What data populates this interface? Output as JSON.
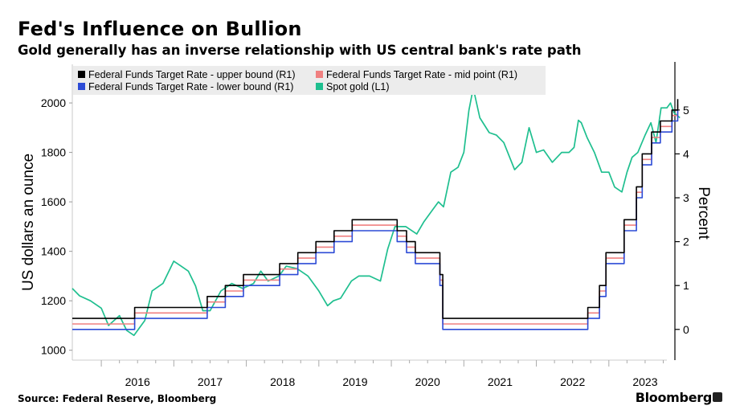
{
  "header": {
    "title": "Fed's Influence on Bullion",
    "subtitle": "Gold generally has an inverse relationship with US central bank's rate path"
  },
  "footer": {
    "source": "Source: Federal Reserve, Bloomberg",
    "brand": "Bloomberg"
  },
  "chart_data": {
    "type": "line",
    "title": "Fed's Influence on Bullion",
    "subtitle": "Gold generally has an inverse relationship with US central bank's rate path",
    "ylabel_left": "US dollars an ounce",
    "ylabel_right": "Percent",
    "x_range": [
      2015.1,
      2023.3
    ],
    "x_ticks": [
      "2016",
      "2017",
      "2018",
      "2019",
      "2020",
      "2021",
      "2022",
      "2023"
    ],
    "ylim_left": [
      960,
      2140
    ],
    "y_ticks_left": [
      1000,
      1200,
      1400,
      1600,
      1800,
      2000
    ],
    "ylim_right": [
      -0.7,
      5.95
    ],
    "y_ticks_right": [
      0,
      1,
      2,
      3,
      4,
      5
    ],
    "grid": false,
    "legend": "top-left",
    "legend_labels": [
      "Federal Funds Target Rate - upper bound (R1)",
      "Federal Funds Target Rate - mid point (R1)",
      "Federal Funds Target Rate - lower bound (R1)",
      "Spot gold (L1)"
    ],
    "series": [
      {
        "name": "Federal Funds Target Rate - upper bound (R1)",
        "axis": "right",
        "color": "#000000",
        "step": true,
        "x": [
          2015.1,
          2015.96,
          2016.96,
          2017.21,
          2017.46,
          2017.96,
          2018.21,
          2018.46,
          2018.71,
          2018.96,
          2019.58,
          2019.71,
          2019.83,
          2020.17,
          2020.21,
          2022.21,
          2022.37,
          2022.46,
          2022.71,
          2022.88,
          2022.96,
          2023.09,
          2023.21,
          2023.37,
          2023.45
        ],
        "values": [
          0.25,
          0.5,
          0.75,
          1.0,
          1.25,
          1.5,
          1.75,
          2.0,
          2.25,
          2.5,
          2.25,
          2.0,
          1.75,
          1.25,
          0.25,
          0.5,
          1.0,
          1.75,
          2.5,
          3.25,
          4.0,
          4.5,
          4.75,
          5.0,
          5.25
        ]
      },
      {
        "name": "Federal Funds Target Rate - mid point (R1)",
        "axis": "right",
        "color": "#f08080",
        "step": true,
        "x": [
          2015.1,
          2015.96,
          2016.96,
          2017.21,
          2017.46,
          2017.96,
          2018.21,
          2018.46,
          2018.71,
          2018.96,
          2019.58,
          2019.71,
          2019.83,
          2020.17,
          2020.21,
          2022.21,
          2022.37,
          2022.46,
          2022.71,
          2022.88,
          2022.96,
          2023.09,
          2023.21,
          2023.37,
          2023.45
        ],
        "values": [
          0.125,
          0.375,
          0.625,
          0.875,
          1.125,
          1.375,
          1.625,
          1.875,
          2.125,
          2.375,
          2.125,
          1.875,
          1.625,
          1.125,
          0.125,
          0.375,
          0.875,
          1.625,
          2.375,
          3.125,
          3.875,
          4.375,
          4.625,
          4.875,
          5.125
        ]
      },
      {
        "name": "Federal Funds Target Rate - lower bound (R1)",
        "axis": "right",
        "color": "#2c4bd6",
        "step": true,
        "x": [
          2015.1,
          2015.96,
          2016.96,
          2017.21,
          2017.46,
          2017.96,
          2018.21,
          2018.46,
          2018.71,
          2018.96,
          2019.58,
          2019.71,
          2019.83,
          2020.17,
          2020.21,
          2022.21,
          2022.37,
          2022.46,
          2022.71,
          2022.88,
          2022.96,
          2023.09,
          2023.21,
          2023.37,
          2023.45
        ],
        "values": [
          0.0,
          0.25,
          0.5,
          0.75,
          1.0,
          1.25,
          1.5,
          1.75,
          2.0,
          2.25,
          2.0,
          1.75,
          1.5,
          1.0,
          0.0,
          0.25,
          0.75,
          1.5,
          2.25,
          3.0,
          3.75,
          4.25,
          4.5,
          4.75,
          5.0
        ]
      },
      {
        "name": "Spot gold (L1)",
        "axis": "left",
        "color": "#1fbf8f",
        "x": [
          2015.1,
          2015.2,
          2015.35,
          2015.5,
          2015.6,
          2015.75,
          2015.85,
          2015.95,
          2016.1,
          2016.2,
          2016.35,
          2016.5,
          2016.6,
          2016.7,
          2016.8,
          2016.9,
          2017.0,
          2017.15,
          2017.3,
          2017.45,
          2017.6,
          2017.7,
          2017.8,
          2017.95,
          2018.05,
          2018.2,
          2018.35,
          2018.5,
          2018.62,
          2018.7,
          2018.8,
          2018.95,
          2019.05,
          2019.2,
          2019.35,
          2019.45,
          2019.55,
          2019.7,
          2019.85,
          2019.95,
          2020.05,
          2020.15,
          2020.22,
          2020.32,
          2020.42,
          2020.5,
          2020.57,
          2020.63,
          2020.72,
          2020.85,
          2020.95,
          2021.05,
          2021.2,
          2021.3,
          2021.4,
          2021.5,
          2021.6,
          2021.72,
          2021.85,
          2021.95,
          2022.02,
          2022.08,
          2022.12,
          2022.2,
          2022.3,
          2022.4,
          2022.5,
          2022.58,
          2022.68,
          2022.75,
          2022.82,
          2022.9,
          2023.0,
          2023.08,
          2023.15,
          2023.22,
          2023.3,
          2023.35,
          2023.4,
          2023.48
        ],
        "values": [
          1250,
          1220,
          1200,
          1170,
          1100,
          1140,
          1080,
          1060,
          1120,
          1240,
          1270,
          1360,
          1340,
          1320,
          1260,
          1160,
          1160,
          1240,
          1270,
          1250,
          1270,
          1320,
          1280,
          1300,
          1340,
          1330,
          1300,
          1240,
          1180,
          1200,
          1210,
          1280,
          1300,
          1300,
          1280,
          1410,
          1500,
          1500,
          1470,
          1520,
          1560,
          1600,
          1580,
          1720,
          1740,
          1800,
          1970,
          2060,
          1940,
          1880,
          1870,
          1840,
          1730,
          1760,
          1900,
          1800,
          1810,
          1760,
          1800,
          1800,
          1820,
          1930,
          1920,
          1860,
          1800,
          1720,
          1720,
          1660,
          1640,
          1720,
          1780,
          1800,
          1870,
          1920,
          1840,
          1980,
          1980,
          2000,
          1960,
          1940
        ]
      }
    ]
  }
}
